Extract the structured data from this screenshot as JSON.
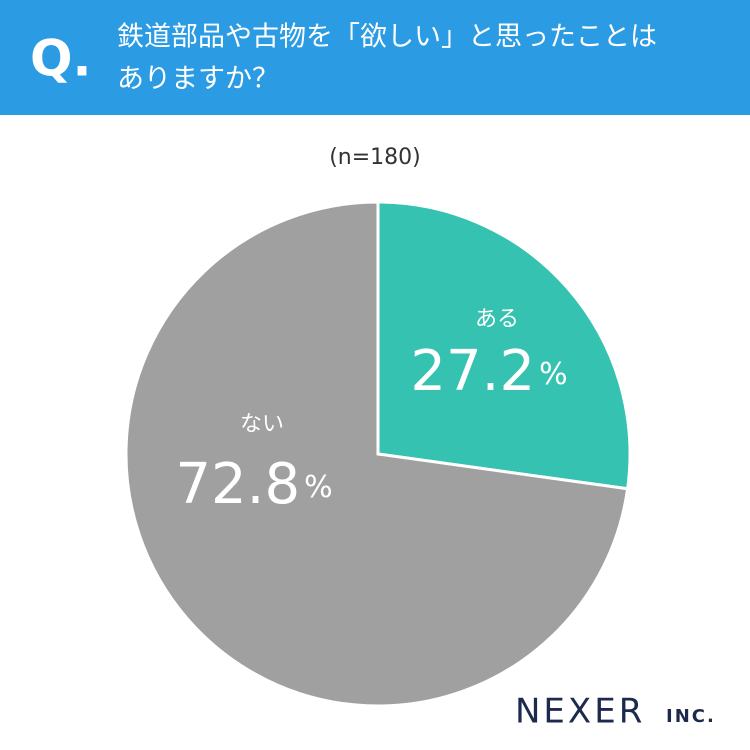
{
  "question_marker": "Q.",
  "chart_data": {
    "type": "pie",
    "title": [
      "鉄道部品や古物を「欲しい」と思ったことは",
      "ありますか？"
    ],
    "subtitle": "(n=180)",
    "categories": [
      "ある",
      "ない"
    ],
    "values": [
      27.2,
      72.8
    ],
    "unit": "%",
    "colors": [
      "#35c2b1",
      "#a0a0a0"
    ]
  },
  "branding": {
    "name": "NEXER",
    "suffix": "INC."
  }
}
